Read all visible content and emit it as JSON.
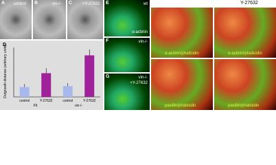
{
  "panels": {
    "a": {
      "letter": "A",
      "label": "control"
    },
    "b": {
      "letter": "B",
      "label": "vin-/-"
    },
    "c": {
      "letter": "C",
      "label": "+Y-27632"
    },
    "e": {
      "letter": "E",
      "label": "wt",
      "stain": "α-actinin"
    },
    "f": {
      "letter": "F",
      "label": "vin-/-"
    },
    "g": {
      "letter": "G",
      "label": "vin-/-",
      "treatment": "+Y-27632"
    },
    "right": {
      "title": "Y-27632",
      "h": "α-actinin/phalloidin",
      "i": "α-actinin/phalloidin",
      "j": "paxillin/phalloidin",
      "k": "paxillin/phalloidin"
    }
  },
  "chart_data": {
    "type": "bar",
    "letter": "D",
    "ylabel": "Outgrowth distance (arbitrary units)",
    "categories": [
      "control",
      "Y-27632",
      "control",
      "Y-27632"
    ],
    "groups": [
      "F9",
      "vin-/-"
    ],
    "values": [
      1.0,
      2.4,
      1.1,
      4.2
    ],
    "errors": [
      0.3,
      0.5,
      0.3,
      0.6
    ],
    "colors": [
      "#a9b8ec",
      "#a0229a",
      "#a9b8ec",
      "#a0229a"
    ],
    "ylim": [
      0,
      5
    ]
  }
}
